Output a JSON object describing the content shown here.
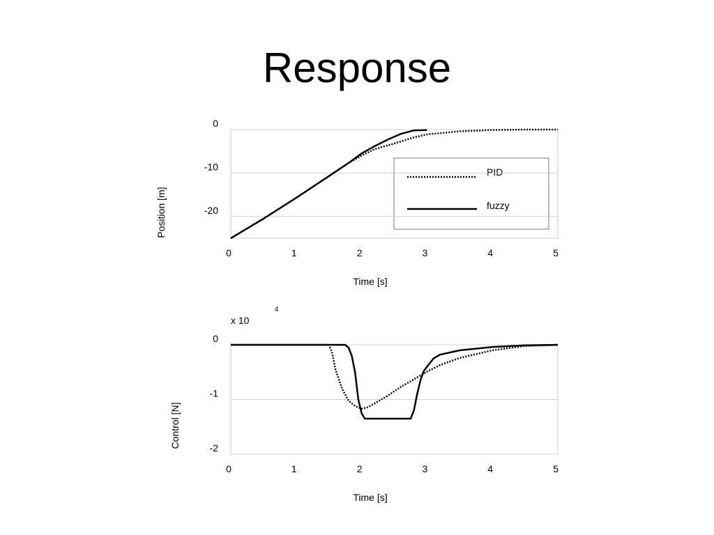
{
  "slide": {
    "title": "Response"
  },
  "chart_data": [
    {
      "type": "line",
      "xlabel": "Time [s]",
      "ylabel": "Position [m]",
      "xlim": [
        0,
        5
      ],
      "ylim": [
        -25,
        0
      ],
      "xticks": [
        "0",
        "1",
        "2",
        "3",
        "4",
        "5"
      ],
      "yticks": [
        "0",
        "-10",
        "-20"
      ],
      "ytick_values": [
        0,
        -10,
        -20
      ],
      "grid": "horizontal",
      "legend": {
        "placement": "center-right",
        "entries": [
          "PID",
          "fuzzy"
        ]
      },
      "series": [
        {
          "name": "PID",
          "style": "dotted",
          "x": [
            0,
            0.5,
            1.0,
            1.5,
            1.8,
            2.0,
            2.2,
            2.5,
            2.8,
            3.0,
            3.5,
            4.0,
            4.5,
            5.0
          ],
          "y": [
            -25,
            -20.5,
            -15.7,
            -10.7,
            -7.7,
            -6.0,
            -4.5,
            -3.2,
            -1.8,
            -1.1,
            -0.4,
            -0.1,
            0,
            0
          ]
        },
        {
          "name": "fuzzy",
          "style": "solid",
          "x": [
            0,
            0.5,
            1.0,
            1.5,
            1.8,
            2.0,
            2.2,
            2.4,
            2.6,
            2.8,
            3.0
          ],
          "y": [
            -25,
            -20.5,
            -15.7,
            -10.7,
            -7.7,
            -5.5,
            -3.8,
            -2.3,
            -1.0,
            -0.2,
            -0.1
          ]
        }
      ]
    },
    {
      "type": "line",
      "xlabel": "Time [s]",
      "ylabel": "Control [N]",
      "scale_label": "x 10",
      "scale_exponent": "4",
      "xlim": [
        0,
        5
      ],
      "ylim": [
        -2,
        0
      ],
      "xticks": [
        "0",
        "1",
        "2",
        "3",
        "4",
        "5"
      ],
      "yticks": [
        "0",
        "-1",
        "-2"
      ],
      "ytick_values": [
        0,
        -1,
        -2
      ],
      "grid": "horizontal",
      "series": [
        {
          "name": "PID",
          "style": "dotted",
          "x": [
            0,
            1.5,
            1.55,
            1.6,
            1.7,
            1.8,
            1.9,
            2.0,
            2.1,
            2.2,
            2.4,
            2.6,
            2.8,
            3.0,
            3.2,
            3.5,
            4.0,
            4.5,
            5.0
          ],
          "y": [
            0,
            0,
            -0.15,
            -0.45,
            -0.8,
            -1.02,
            -1.12,
            -1.17,
            -1.14,
            -1.07,
            -0.93,
            -0.77,
            -0.63,
            -0.49,
            -0.37,
            -0.24,
            -0.1,
            -0.02,
            0
          ]
        },
        {
          "name": "fuzzy",
          "style": "solid",
          "x": [
            0,
            1.75,
            1.8,
            1.85,
            1.9,
            1.95,
            2.0,
            2.05,
            2.75,
            2.8,
            2.85,
            2.9,
            2.95,
            3.0,
            3.1,
            3.2,
            3.5,
            4.0,
            4.5,
            5.0
          ],
          "y": [
            0,
            0,
            -0.05,
            -0.2,
            -0.5,
            -1.0,
            -1.25,
            -1.35,
            -1.35,
            -1.2,
            -0.9,
            -0.65,
            -0.48,
            -0.4,
            -0.25,
            -0.18,
            -0.1,
            -0.04,
            -0.01,
            0
          ]
        }
      ]
    }
  ]
}
